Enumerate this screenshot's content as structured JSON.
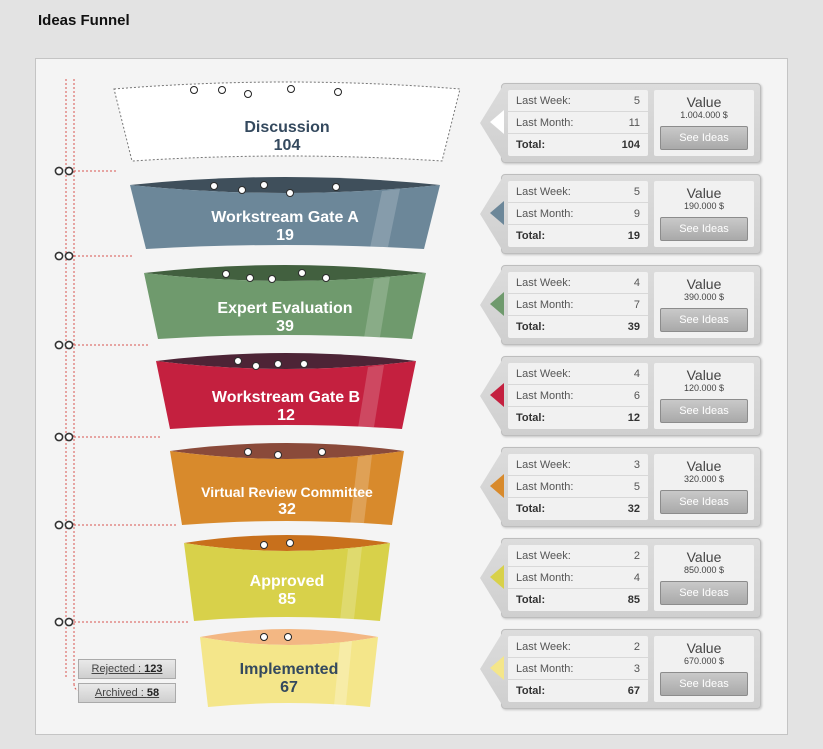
{
  "page": {
    "title": "Ideas Funnel"
  },
  "labels": {
    "last_week": "Last Week:",
    "last_month": "Last Month:",
    "total": "Total:",
    "value": "Value",
    "see_ideas": "See Ideas"
  },
  "stages": [
    {
      "name": "Discussion",
      "count": "104",
      "last_week": "5",
      "last_month": "11",
      "total": "104",
      "value": "1.004.000 $",
      "color": "#ffffff"
    },
    {
      "name": "Workstream Gate A",
      "count": "19",
      "last_week": "5",
      "last_month": "9",
      "total": "19",
      "value": "190.000 $",
      "color": "#6c8799"
    },
    {
      "name": "Expert Evaluation",
      "count": "39",
      "last_week": "4",
      "last_month": "7",
      "total": "39",
      "value": "390.000 $",
      "color": "#6f9a6d"
    },
    {
      "name": "Workstream Gate B",
      "count": "12",
      "last_week": "4",
      "last_month": "6",
      "total": "12",
      "value": "120.000 $",
      "color": "#c4203f"
    },
    {
      "name": "Virtual Review Committee",
      "count": "32",
      "last_week": "3",
      "last_month": "5",
      "total": "32",
      "value": "320.000 $",
      "color": "#d88a2c"
    },
    {
      "name": "Approved",
      "count": "85",
      "last_week": "2",
      "last_month": "4",
      "total": "85",
      "value": "850.000 $",
      "color": "#d8d14a"
    },
    {
      "name": "Implemented",
      "count": "67",
      "last_week": "2",
      "last_month": "3",
      "total": "67",
      "value": "670.000 $",
      "color": "#f4e68a"
    }
  ],
  "legend": {
    "rejected_label": "Rejected : ",
    "rejected_count": "123",
    "archived_label": "Archived : ",
    "archived_count": "58"
  }
}
